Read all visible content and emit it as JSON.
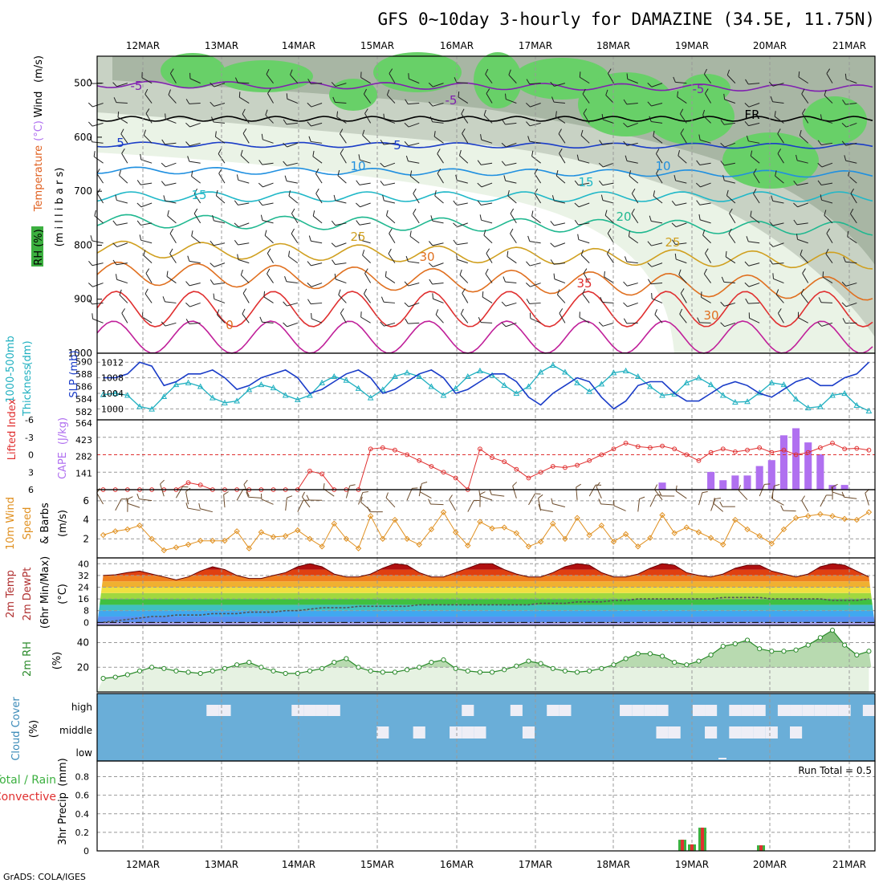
{
  "title": "GFS 0~10day 3-hourly for DAMAZINE (34.5E, 11.75N)",
  "credit": "GrADS: COLA/IGES",
  "days": [
    "12MAR",
    "13MAR",
    "14MAR",
    "15MAR",
    "16MAR",
    "17MAR",
    "18MAR",
    "19MAR",
    "20MAR",
    "21MAR"
  ],
  "colors": {
    "green": "#3cb040",
    "red": "#e03030",
    "blue": "#1a3cc8",
    "cyan": "#20b0c0",
    "orange": "#e09020",
    "purple": "#b070f0",
    "cloud": "#6aaed8"
  },
  "panels": {
    "upper": {
      "labels": [
        "RH (%)",
        "Temperature",
        "(°C)",
        "Wind",
        "(m/s)",
        "(m i l l i b a r s)"
      ],
      "yticks": [
        "500",
        "600",
        "700",
        "800",
        "900",
        "1000"
      ],
      "contour_labels": [
        "-5",
        "-5",
        "-5",
        "-5",
        "5",
        "5",
        "10",
        "10",
        "15",
        "15",
        "20",
        "25",
        "25",
        "30",
        "30",
        "35",
        "0",
        "FR"
      ]
    },
    "slp": {
      "labels": [
        "Thickness",
        "1000-500mb",
        "(dm)",
        "SLP",
        "(mb)"
      ],
      "left_ticks": [
        "590",
        "588",
        "586",
        "584",
        "582"
      ],
      "right_ticks": [
        "1012",
        "1008",
        "1004",
        "1000"
      ]
    },
    "cape": {
      "labels": [
        "Lifted Index",
        "CAPE",
        "(J/kg)"
      ],
      "li_ticks": [
        "-6",
        "-3",
        "0",
        "3",
        "6"
      ],
      "cape_ticks": [
        "564",
        "423",
        "282",
        "141"
      ]
    },
    "wind": {
      "labels": [
        "10m Wind",
        "Speed",
        "& Barbs",
        "(m/s)"
      ],
      "yticks": [
        "6",
        "4",
        "2"
      ]
    },
    "temp": {
      "labels": [
        "2m Temp",
        "2m DewPt",
        "(6hr Min/Max)",
        "(°C)"
      ],
      "yticks": [
        "40",
        "32",
        "24",
        "16",
        "8",
        "0"
      ]
    },
    "rh": {
      "labels": [
        "2m RH",
        "(%)"
      ],
      "yticks": [
        "40",
        "20"
      ]
    },
    "cloud": {
      "labels": [
        "Cloud Cover",
        "(%)"
      ],
      "levels": [
        "high",
        "middle",
        "low"
      ]
    },
    "precip": {
      "labels": [
        "Total / Rain",
        "Convective",
        "3hr Precip",
        "(mm)"
      ],
      "yticks": [
        "0.8",
        "0.6",
        "0.4",
        "0.2",
        "0"
      ],
      "run_total": "Run Total = 0.5"
    }
  },
  "chart_data": [
    {
      "type": "line",
      "title": "",
      "series": [
        {
          "name": "SLP",
          "unit": "mb",
          "values": [
            1008,
            1008,
            1009,
            1012,
            1011,
            1006,
            1007,
            1009,
            1009,
            1010,
            1008,
            1005,
            1006,
            1008,
            1009,
            1010,
            1008,
            1004,
            1005,
            1007,
            1009,
            1010,
            1008,
            1004,
            1005,
            1007,
            1009,
            1010,
            1008,
            1004,
            1005,
            1007,
            1009,
            1009,
            1007,
            1003,
            1001,
            1004,
            1006,
            1008,
            1007,
            1003,
            1000,
            1002,
            1006,
            1007,
            1007,
            1004,
            1002,
            1002,
            1004,
            1006,
            1007,
            1006,
            1004,
            1003,
            1005,
            1007,
            1008,
            1006,
            1006,
            1008,
            1009,
            1012
          ]
        },
        {
          "name": "1000-500mb Thickness",
          "unit": "dm",
          "values": [
            584.7,
            584.9,
            584.6,
            582.8,
            582.4,
            584.4,
            586.3,
            586.6,
            586.0,
            584.2,
            583.4,
            583.7,
            585.5,
            586.3,
            585.8,
            584.6,
            583.9,
            584.6,
            586.6,
            587.6,
            587.0,
            585.7,
            584.2,
            585.5,
            587.6,
            588.2,
            587.6,
            586.0,
            584.6,
            585.7,
            587.6,
            588.5,
            587.8,
            586.2,
            584.9,
            586.0,
            588.3,
            589.4,
            588.3,
            586.6,
            585.2,
            586.4,
            588.2,
            588.5,
            587.6,
            586.0,
            584.6,
            584.8,
            586.6,
            587.4,
            586.3,
            584.6,
            583.5,
            583.6,
            585.0,
            586.6,
            586.3,
            584.0,
            582.6,
            582.8,
            584.6,
            584.9,
            583.0,
            582.1
          ]
        }
      ]
    },
    {
      "type": "bar",
      "title": "",
      "series": [
        {
          "name": "CAPE",
          "unit": "J/kg",
          "values": [
            0,
            0,
            0,
            0,
            0,
            0,
            0,
            0,
            0,
            0,
            0,
            0,
            0,
            0,
            0,
            0,
            0,
            0,
            0,
            0,
            0,
            0,
            0,
            0,
            0,
            0,
            0,
            0,
            0,
            0,
            0,
            0,
            0,
            0,
            0,
            0,
            0,
            0,
            0,
            0,
            0,
            0,
            0,
            0,
            0,
            0,
            60,
            0,
            0,
            0,
            150,
            80,
            120,
            120,
            200,
            250,
            460,
            520,
            400,
            300,
            40,
            40,
            0,
            0
          ]
        },
        {
          "name": "Lifted Index",
          "values": [
            6,
            6,
            6,
            6,
            6,
            6,
            6,
            4.8,
            5.2,
            6,
            6,
            6,
            6,
            6,
            6,
            6,
            6,
            2.8,
            3.3,
            6,
            6,
            6,
            -1,
            -1.2,
            -0.8,
            0,
            1,
            2,
            3,
            4,
            6,
            -1,
            0.5,
            1.2,
            2.5,
            4,
            3,
            2,
            2.2,
            1.8,
            1,
            0,
            -1,
            -2,
            -1.4,
            -1.2,
            -1.5,
            -1,
            0,
            1,
            -0.4,
            -1,
            -0.5,
            -0.8,
            -1.2,
            -0.4,
            -0.8,
            0,
            -0.4,
            -1.2,
            -2,
            -1,
            -1.1,
            -0.8
          ]
        }
      ]
    },
    {
      "type": "line",
      "title": "",
      "series": [
        {
          "name": "10m Wind Speed",
          "unit": "m/s",
          "values": [
            2.4,
            2.8,
            3.0,
            3.4,
            2.0,
            0.8,
            1.1,
            1.4,
            1.8,
            1.8,
            1.8,
            2.8,
            1.0,
            2.7,
            2.2,
            2.3,
            2.9,
            2.0,
            1.2,
            3.6,
            2.0,
            1.0,
            4.4,
            2.0,
            4.0,
            2.0,
            1.4,
            3.0,
            4.8,
            2.7,
            1.3,
            3.8,
            3.1,
            3.2,
            2.6,
            1.2,
            1.7,
            3.6,
            2.0,
            4.2,
            2.4,
            3.4,
            1.7,
            2.5,
            1.2,
            2.1,
            4.5,
            2.6,
            3.2,
            2.7,
            2.1,
            1.4,
            4.0,
            3.0,
            2.3,
            1.5,
            3.0,
            4.2,
            4.4,
            4.6,
            4.4,
            4.1,
            4.0,
            4.8
          ]
        }
      ]
    },
    {
      "type": "area",
      "title": "",
      "series": [
        {
          "name": "2m Temp",
          "unit": "°C",
          "values": [
            32,
            32.5,
            34,
            35,
            33,
            31,
            29,
            31,
            35,
            38,
            36,
            32,
            30,
            30,
            32,
            34,
            38,
            40,
            38,
            33,
            31,
            31,
            33,
            37,
            40,
            39,
            34,
            31,
            31,
            34,
            37,
            40,
            40,
            36,
            33,
            31,
            31,
            34,
            38,
            40,
            39,
            34,
            31,
            31,
            33,
            37,
            40,
            39,
            34,
            32,
            31,
            33,
            37,
            39,
            39,
            35,
            33,
            31,
            33,
            38,
            40,
            39,
            35,
            31
          ]
        },
        {
          "name": "2m DewPt",
          "unit": "°C",
          "values": [
            0,
            1,
            2,
            3,
            4,
            4,
            5,
            5,
            5,
            6,
            6,
            6,
            7,
            7,
            7,
            8,
            8,
            9,
            10,
            10,
            10,
            11,
            11,
            11,
            11,
            11,
            12,
            12,
            12,
            12,
            12,
            12,
            12,
            12,
            12,
            12,
            13,
            13,
            13,
            14,
            14,
            14,
            15,
            15,
            16,
            16,
            16,
            16,
            16,
            16,
            16,
            17,
            17,
            17,
            17,
            16,
            16,
            16,
            16,
            16,
            15,
            15,
            15,
            16
          ]
        }
      ]
    },
    {
      "type": "area",
      "title": "",
      "series": [
        {
          "name": "2m RH",
          "unit": "%",
          "values": [
            11,
            12,
            14,
            17,
            20,
            19,
            17,
            16,
            15,
            17,
            19,
            22,
            24,
            20,
            17,
            15,
            15,
            17,
            19,
            24,
            27,
            20,
            17,
            16,
            16,
            18,
            20,
            24,
            26,
            19,
            17,
            16,
            16,
            18,
            21,
            25,
            23,
            19,
            17,
            16,
            17,
            19,
            22,
            27,
            31,
            31,
            29,
            24,
            22,
            25,
            30,
            37,
            39,
            42,
            35,
            33,
            33,
            34,
            38,
            44,
            50,
            38,
            30,
            33
          ]
        }
      ]
    },
    {
      "type": "bar",
      "title": "",
      "categories": [
        "18MAR 21Z",
        "19MAR 00Z",
        "19MAR 03Z",
        "19MAR 06Z",
        "19MAR 09Z",
        "19MAR 12Z",
        "19MAR 15Z",
        "19MAR 18Z",
        "19MAR 21Z",
        "20MAR 00Z"
      ],
      "series": [
        {
          "name": "Total / Rain",
          "unit": "mm",
          "values": [
            0.12,
            0.07,
            0.25,
            0,
            0,
            0,
            0,
            0,
            0,
            0.06
          ]
        },
        {
          "name": "Convective",
          "unit": "mm",
          "values": [
            0.12,
            0.07,
            0.25,
            0,
            0,
            0,
            0,
            0,
            0,
            0.06
          ]
        }
      ],
      "ylim": [
        0,
        0.9
      ]
    }
  ]
}
